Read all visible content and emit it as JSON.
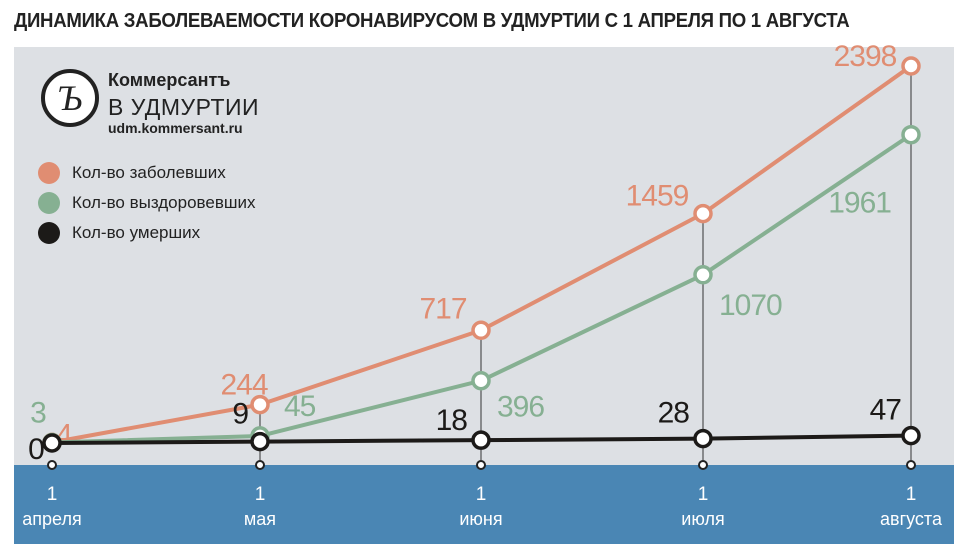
{
  "title": "ДИНАМИКА ЗАБОЛЕВАЕМОСТИ КОРОНАВИРУСОМ В УДМУРТИИ С 1 АПРЕЛЯ ПО 1 АВГУСТА",
  "brand": {
    "name": "Коммерсантъ",
    "region": "В УДМУРТИИ",
    "url": "udm.kommersant.ru",
    "logo_letter": "Ъ"
  },
  "colors": {
    "background": "#dde0e4",
    "axis_band": "#4a86b4",
    "infected": "#e08d72",
    "recovered": "#86b092",
    "deaths": "#1c1a18"
  },
  "chart_data": {
    "type": "line",
    "categories": [
      {
        "line1": "1",
        "line2": "апреля"
      },
      {
        "line1": "1",
        "line2": "мая"
      },
      {
        "line1": "1",
        "line2": "июня"
      },
      {
        "line1": "1",
        "line2": "июля"
      },
      {
        "line1": "1",
        "line2": "августа"
      }
    ],
    "ylim": [
      0,
      2398
    ],
    "series": [
      {
        "name": "Кол-во заболевших",
        "key": "infected",
        "values": [
          4,
          244,
          717,
          1459,
          2398
        ],
        "labels": [
          "4",
          "244",
          "717",
          "1459",
          "2398"
        ]
      },
      {
        "name": "Кол-во выздоровевших",
        "key": "recovered",
        "values": [
          3,
          45,
          396,
          1070,
          1961
        ],
        "labels": [
          "3",
          "45",
          "396",
          "1070",
          "1961"
        ]
      },
      {
        "name": "Кол-во умерших",
        "key": "deaths",
        "values": [
          0,
          9,
          18,
          28,
          47
        ],
        "labels": [
          "0",
          "9",
          "18",
          "28",
          "47"
        ]
      }
    ],
    "legend": "top-left"
  }
}
